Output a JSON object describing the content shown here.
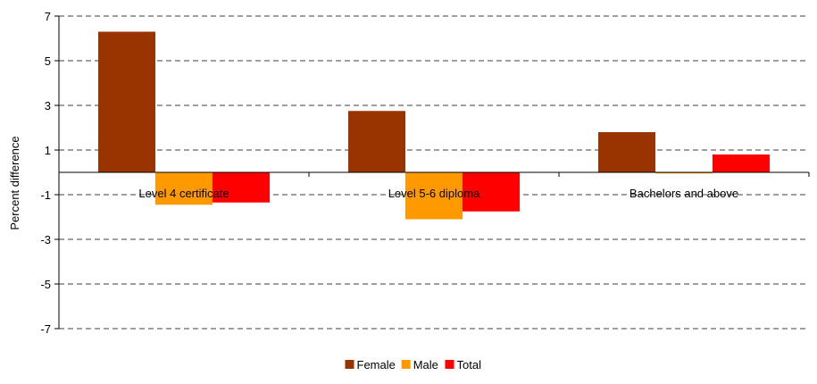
{
  "chart_data": {
    "type": "bar",
    "categories": [
      "Level 4 certificate",
      "Level 5-6 diploma",
      "Bachelors and above"
    ],
    "series": [
      {
        "name": "Female",
        "values": [
          6.3,
          2.75,
          1.8
        ],
        "color": "#993300"
      },
      {
        "name": "Male",
        "values": [
          -1.45,
          -2.1,
          -0.05
        ],
        "color": "#FF9900"
      },
      {
        "name": "Total",
        "values": [
          -1.35,
          -1.75,
          0.8
        ],
        "color": "#FF0000"
      }
    ],
    "ylabel": "Percent difference",
    "ylim": [
      -7,
      7
    ],
    "yticks": [
      7,
      5,
      3,
      1,
      -1,
      -3,
      -5,
      -7
    ],
    "grid": true,
    "legend": "bottom"
  }
}
